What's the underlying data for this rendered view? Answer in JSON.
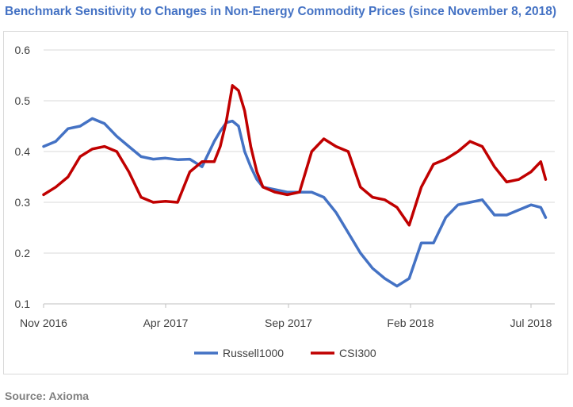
{
  "chart_data": {
    "type": "line",
    "title": "Benchmark Sensitivity to Changes in Non-Energy Commodity Prices (since November 8, 2018)",
    "source": "Source: Axioma",
    "xlabel": "",
    "ylabel": "",
    "x_ticks": [
      "Nov 2016",
      "Apr 2017",
      "Sep 2017",
      "Feb 2018",
      "Jul 2018"
    ],
    "y_ticks": [
      "0.1",
      "0.2",
      "0.3",
      "0.4",
      "0.5",
      "0.6"
    ],
    "ylim": [
      0.1,
      0.6
    ],
    "xlim_months": [
      0,
      20.8
    ],
    "grid": "horizontal",
    "legend": "bottom",
    "x_months": [
      0,
      0.5,
      1,
      1.5,
      2,
      2.5,
      3,
      3.5,
      4,
      4.5,
      5,
      5.5,
      6,
      6.5,
      7,
      7.25,
      7.5,
      7.75,
      8,
      8.25,
      8.5,
      8.75,
      9,
      9.5,
      10,
      10.5,
      11,
      11.5,
      12,
      12.5,
      13,
      13.5,
      14,
      14.5,
      15,
      15.5,
      16,
      16.5,
      17,
      17.5,
      18,
      18.5,
      19,
      19.5,
      20,
      20.4,
      20.6
    ],
    "series": [
      {
        "name": "Russell1000",
        "color": "#4472c4",
        "values": [
          0.41,
          0.42,
          0.445,
          0.45,
          0.465,
          0.455,
          0.43,
          0.41,
          0.39,
          0.385,
          0.387,
          0.384,
          0.385,
          0.37,
          0.42,
          0.44,
          0.457,
          0.46,
          0.45,
          0.4,
          0.37,
          0.345,
          0.33,
          0.325,
          0.32,
          0.32,
          0.32,
          0.31,
          0.28,
          0.24,
          0.2,
          0.17,
          0.15,
          0.135,
          0.15,
          0.22,
          0.22,
          0.27,
          0.295,
          0.3,
          0.305,
          0.275,
          0.275,
          0.285,
          0.295,
          0.29,
          0.27
        ]
      },
      {
        "name": "CSI300",
        "color": "#c00000",
        "values": [
          0.315,
          0.33,
          0.35,
          0.39,
          0.405,
          0.41,
          0.4,
          0.36,
          0.31,
          0.3,
          0.302,
          0.3,
          0.36,
          0.38,
          0.38,
          0.41,
          0.46,
          0.53,
          0.52,
          0.48,
          0.41,
          0.36,
          0.33,
          0.32,
          0.315,
          0.32,
          0.4,
          0.425,
          0.41,
          0.4,
          0.33,
          0.31,
          0.305,
          0.29,
          0.255,
          0.33,
          0.375,
          0.385,
          0.4,
          0.42,
          0.41,
          0.37,
          0.34,
          0.345,
          0.36,
          0.38,
          0.345
        ]
      }
    ]
  }
}
